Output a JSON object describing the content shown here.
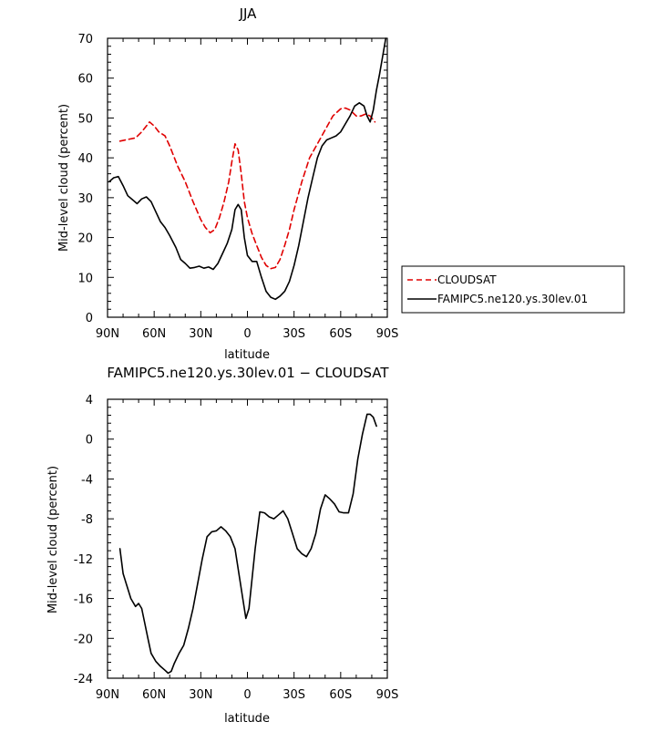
{
  "chart_data": [
    {
      "type": "line",
      "title": "JJA",
      "xlabel": "latitude",
      "ylabel": "Mid-level cloud (percent)",
      "xlim": [
        90,
        -90
      ],
      "ylim": [
        0,
        70
      ],
      "xticks": [
        {
          "value": 90,
          "label": "90N"
        },
        {
          "value": 60,
          "label": "60N"
        },
        {
          "value": 30,
          "label": "30N"
        },
        {
          "value": 0,
          "label": "0"
        },
        {
          "value": -30,
          "label": "30S"
        },
        {
          "value": -60,
          "label": "60S"
        },
        {
          "value": -90,
          "label": "90S"
        }
      ],
      "yticks": [
        0,
        10,
        20,
        30,
        40,
        50,
        60,
        70
      ],
      "legend": {
        "placement": "right-outside"
      },
      "series": [
        {
          "name": "CLOUDSAT",
          "color": "#e00000",
          "dash": "dashed",
          "x": [
            82,
            77,
            72,
            68,
            65,
            63,
            60,
            57,
            53,
            50,
            45,
            40,
            35,
            30,
            27,
            24,
            21,
            18,
            15,
            12,
            10,
            8,
            6,
            4,
            2,
            0,
            -3,
            -6,
            -9,
            -12,
            -15,
            -18,
            -21,
            -24,
            -27,
            -30,
            -35,
            -40,
            -45,
            -50,
            -55,
            -60,
            -63,
            -66,
            -70,
            -73,
            -76,
            -79,
            -82
          ],
          "y": [
            44.2,
            44.6,
            45,
            46.5,
            48,
            49,
            48,
            46.5,
            45.5,
            43,
            38,
            34,
            29,
            24.5,
            22.5,
            21.2,
            22,
            25,
            29,
            34,
            39,
            43.5,
            42,
            36,
            29,
            25,
            21,
            18,
            15,
            13,
            12.2,
            12.5,
            14.5,
            18,
            22,
            27,
            34,
            40,
            43.5,
            47,
            50.5,
            52.3,
            52.5,
            52,
            50.5,
            50.5,
            51,
            50.5,
            49
          ]
        },
        {
          "name": "FAMIPC5.ne120.ys.30lev.01",
          "color": "#000000",
          "dash": "solid",
          "x": [
            89,
            86,
            83,
            80,
            77,
            74,
            71,
            68,
            65,
            62,
            59,
            56,
            53,
            50,
            46,
            43,
            40,
            37,
            34,
            31,
            28,
            25,
            22,
            19,
            16,
            13,
            10,
            8,
            6,
            4,
            2,
            0,
            -3,
            -6,
            -9,
            -12,
            -15,
            -18,
            -21,
            -24,
            -27,
            -30,
            -33,
            -36,
            -39,
            -42,
            -45,
            -48,
            -51,
            -54,
            -57,
            -60,
            -63,
            -66,
            -69,
            -72,
            -75,
            -77,
            -79,
            -81,
            -83,
            -85,
            -87,
            -89
          ],
          "y": [
            34,
            35,
            35.3,
            33,
            30.5,
            29.5,
            28.5,
            29.7,
            30.2,
            29,
            26.5,
            24,
            22.5,
            20.5,
            17.5,
            14.5,
            13.5,
            12.3,
            12.5,
            12.8,
            12.3,
            12.6,
            12,
            13.5,
            16,
            18.5,
            22,
            27,
            28.3,
            27,
            20,
            15.5,
            14,
            14,
            10,
            6.5,
            5,
            4.5,
            5.3,
            6.5,
            9,
            13,
            18,
            24,
            30,
            35,
            40,
            43,
            44.5,
            45,
            45.5,
            46.5,
            48.5,
            50.5,
            53,
            53.8,
            53,
            50.5,
            49,
            52,
            57,
            61,
            65.5,
            70
          ]
        }
      ]
    },
    {
      "type": "line",
      "title": "FAMIPC5.ne120.ys.30lev.01 − CLOUDSAT",
      "xlabel": "latitude",
      "ylabel": "Mid-level cloud (percent)",
      "xlim": [
        90,
        -90
      ],
      "ylim": [
        -24,
        4
      ],
      "xticks": [
        {
          "value": 90,
          "label": "90N"
        },
        {
          "value": 60,
          "label": "60N"
        },
        {
          "value": 30,
          "label": "30N"
        },
        {
          "value": 0,
          "label": "0"
        },
        {
          "value": -30,
          "label": "30S"
        },
        {
          "value": -60,
          "label": "60S"
        },
        {
          "value": -90,
          "label": "90S"
        }
      ],
      "yticks": [
        -24,
        -20,
        -16,
        -12,
        -8,
        -4,
        0,
        4
      ],
      "series": [
        {
          "color": "#000000",
          "dash": "solid",
          "x": [
            82,
            80,
            78,
            75,
            72,
            70,
            68,
            66,
            64,
            62,
            59,
            56,
            53,
            51,
            49,
            47,
            44,
            41,
            38,
            35,
            32,
            29,
            26,
            23,
            20,
            17,
            14,
            11,
            8,
            5,
            3,
            1,
            -1,
            -3,
            -5,
            -8,
            -11,
            -14,
            -17,
            -20,
            -23,
            -26,
            -29,
            -32,
            -35,
            -38,
            -41,
            -44,
            -47,
            -50,
            -53,
            -56,
            -59,
            -62,
            -65,
            -68,
            -71,
            -74,
            -77,
            -79,
            -81,
            -83
          ],
          "y": [
            -11,
            -13.5,
            -14.5,
            -16,
            -16.8,
            -16.5,
            -17,
            -18.5,
            -20,
            -21.5,
            -22.3,
            -22.8,
            -23.2,
            -23.5,
            -23.3,
            -22.5,
            -21.5,
            -20.7,
            -19,
            -17,
            -14.5,
            -12,
            -9.8,
            -9.3,
            -9.2,
            -8.8,
            -9.2,
            -9.8,
            -11,
            -14,
            -16,
            -18,
            -17,
            -14,
            -11,
            -7.3,
            -7.4,
            -7.8,
            -8,
            -7.6,
            -7.2,
            -8,
            -9.5,
            -11,
            -11.5,
            -11.8,
            -11,
            -9.5,
            -7,
            -5.6,
            -6,
            -6.5,
            -7.3,
            -7.4,
            -7.4,
            -5.5,
            -2,
            0.5,
            2.5,
            2.5,
            2.2,
            1.3
          ]
        }
      ]
    }
  ]
}
